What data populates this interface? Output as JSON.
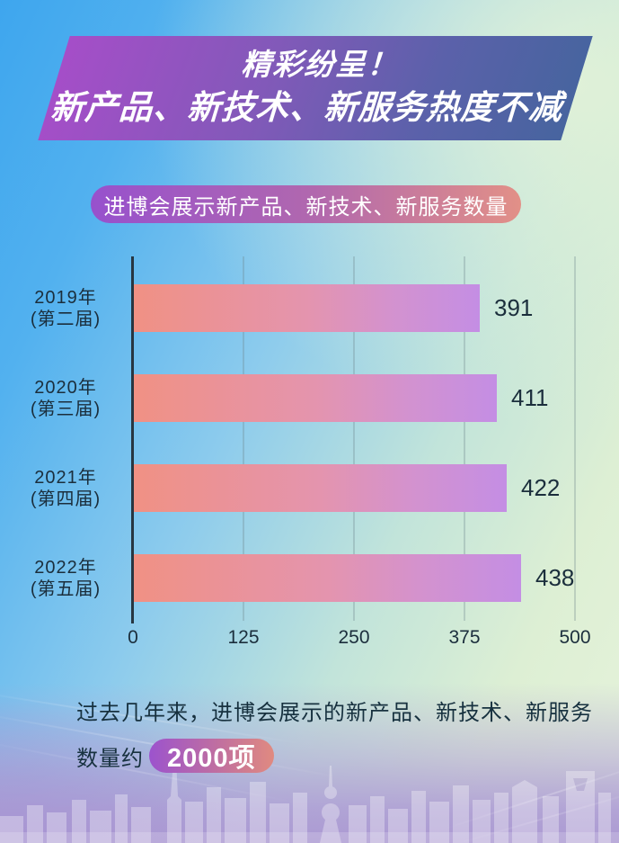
{
  "banner": {
    "line1": "精彩纷呈！",
    "line2": "新产品、新技术、新服务热度不减"
  },
  "subtitle": {
    "text": "进博会展示新产品、新技术、新服务数量"
  },
  "chart_data": {
    "type": "bar",
    "orientation": "horizontal",
    "title": "进博会展示新产品、新技术、新服务数量",
    "categories": [
      "2019年",
      "2020年",
      "2021年",
      "2022年"
    ],
    "category_sublabels": [
      "(第二届)",
      "(第三届)",
      "(第四届)",
      "(第五届)"
    ],
    "values": [
      391,
      411,
      422,
      438
    ],
    "xlabel": "",
    "ylabel": "",
    "xlim": [
      0,
      500
    ],
    "xticks": [
      0,
      125,
      250,
      375,
      500
    ],
    "grid": "vertical",
    "legend": "none",
    "bar_gradient": [
      "#f09184",
      "#c48ee4"
    ],
    "value_label_color": "#1b2e3c"
  },
  "footer": {
    "line1": "过去几年来，进博会展示的新产品、新技术、新服务",
    "line2_prefix": "数量约",
    "badge": "2000项"
  },
  "colors": {
    "banner_gradient": [
      "#a54ec8",
      "#47649f"
    ],
    "pill_gradient": [
      "#9751cd",
      "#e29087"
    ],
    "badge_gradient": [
      "#9c53cd",
      "#e08a80"
    ],
    "background_blue": "#3ea6ee",
    "background_green": "#e6f3db",
    "background_lavender": "#ab99d2",
    "axis_color": "#273642",
    "text_dark": "#1b2e3c"
  }
}
